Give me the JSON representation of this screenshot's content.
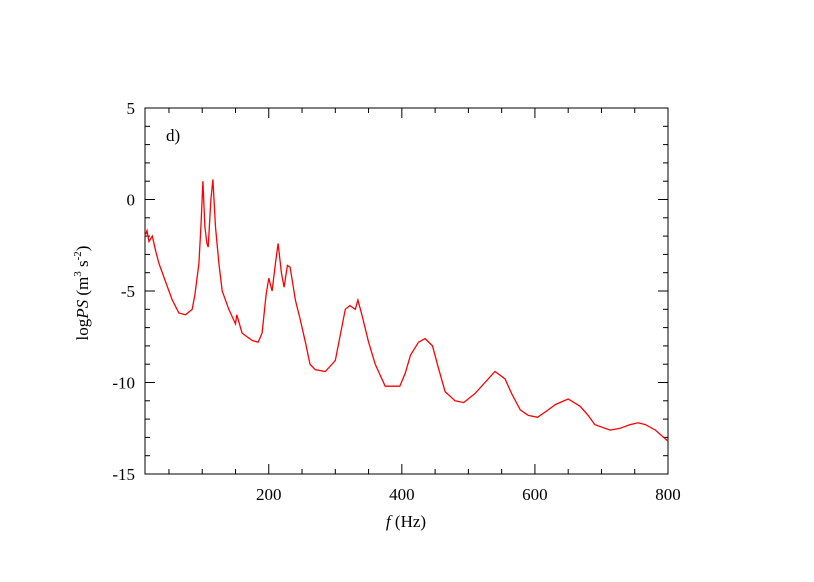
{
  "chart_data": {
    "type": "line",
    "annotation": "d)",
    "xlabel": [
      "f",
      " (Hz)"
    ],
    "ylabel": [
      "log",
      "PS",
      " (m",
      "3",
      " s",
      "-2",
      ")"
    ],
    "xlim": [
      14,
      800
    ],
    "ylim": [
      -15,
      5
    ],
    "xticks": [
      200,
      400,
      600,
      800
    ],
    "yticks": [
      5,
      0,
      -5,
      -10,
      -15
    ],
    "xminorticks": [
      50,
      100,
      150,
      250,
      300,
      350,
      450,
      500,
      550,
      650,
      700,
      750
    ],
    "yminorticks": [
      4,
      3,
      2,
      1,
      -1,
      -2,
      -3,
      -4,
      -6,
      -7,
      -8,
      -9,
      -11,
      -12,
      -13,
      -14
    ],
    "series": [
      {
        "color": "#ff0000",
        "x": [
          14,
          17,
          20,
          25,
          30,
          35,
          45,
          55,
          65,
          75,
          85,
          89,
          95,
          98,
          101,
          104,
          107,
          109,
          113,
          116,
          120,
          125,
          130,
          140,
          150,
          152,
          160,
          175,
          184,
          190,
          196,
          200,
          205,
          210,
          214,
          219,
          223,
          228,
          232,
          240,
          247,
          255,
          262,
          270,
          285,
          300,
          315,
          322,
          330,
          334,
          340,
          350,
          360,
          375,
          397,
          405,
          413,
          425,
          435,
          446,
          455,
          465,
          480,
          493,
          510,
          525,
          540,
          555,
          565,
          578,
          590,
          604,
          620,
          631,
          650,
          668,
          680,
          690,
          713,
          728,
          743,
          755,
          766,
          781,
          800
        ],
        "values": [
          -2.0,
          -1.7,
          -2.3,
          -2.0,
          -2.8,
          -3.5,
          -4.5,
          -5.5,
          -6.2,
          -6.3,
          -6.0,
          -5.2,
          -3.5,
          -1.5,
          1.0,
          -1.5,
          -2.4,
          -2.6,
          0.0,
          1.1,
          -1.5,
          -3.5,
          -5.0,
          -6.0,
          -6.8,
          -6.3,
          -7.3,
          -7.7,
          -7.8,
          -7.3,
          -5.2,
          -4.3,
          -5.0,
          -3.5,
          -2.4,
          -4.0,
          -4.8,
          -3.6,
          -3.7,
          -5.5,
          -6.5,
          -7.8,
          -9.0,
          -9.3,
          -9.4,
          -8.8,
          -6.0,
          -5.8,
          -6.0,
          -5.5,
          -6.3,
          -7.8,
          -9.0,
          -10.2,
          -10.2,
          -9.5,
          -8.5,
          -7.8,
          -7.6,
          -8.0,
          -9.2,
          -10.5,
          -11.0,
          -11.1,
          -10.6,
          -10.0,
          -9.4,
          -9.8,
          -10.6,
          -11.5,
          -11.8,
          -11.9,
          -11.5,
          -11.2,
          -10.9,
          -11.3,
          -11.8,
          -12.3,
          -12.6,
          -12.5,
          -12.3,
          -12.2,
          -12.3,
          -12.6,
          -13.2
        ]
      }
    ]
  }
}
